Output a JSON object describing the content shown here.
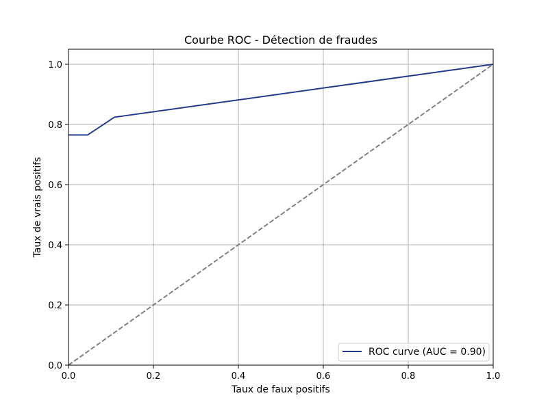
{
  "chart_data": {
    "type": "line",
    "title": "Courbe ROC - Détection de fraudes",
    "xlabel": "Taux de faux positifs",
    "ylabel": "Taux de vrais positifs",
    "xlim": [
      0.0,
      1.0
    ],
    "ylim": [
      0.0,
      1.05
    ],
    "x_ticks": [
      0.0,
      0.2,
      0.4,
      0.6,
      0.8,
      1.0
    ],
    "x_tick_labels": [
      "0.0",
      "0.2",
      "0.4",
      "0.6",
      "0.8",
      "1.0"
    ],
    "y_ticks": [
      0.0,
      0.2,
      0.4,
      0.6,
      0.8,
      1.0
    ],
    "y_tick_labels": [
      "0.0",
      "0.2",
      "0.4",
      "0.6",
      "0.8",
      "1.0"
    ],
    "grid": true,
    "legend_position": "bottom-right",
    "series": [
      {
        "name": "ROC curve (AUC = 0.90)",
        "color": "#233a8b",
        "line_style": "solid",
        "x": [
          0.0,
          0.045,
          0.108,
          1.0
        ],
        "y": [
          0.765,
          0.765,
          0.824,
          1.0
        ]
      },
      {
        "color": "#808080",
        "line_style": "dashed",
        "x": [
          0.0,
          1.0
        ],
        "y": [
          0.0,
          1.0
        ]
      }
    ],
    "colors": {
      "grid": "#b0b0b0",
      "axes": "#000000",
      "background": "#ffffff"
    }
  }
}
